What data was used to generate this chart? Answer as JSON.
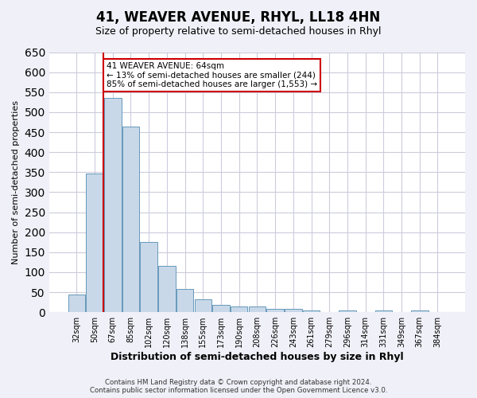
{
  "title": "41, WEAVER AVENUE, RHYL, LL18 4HN",
  "subtitle": "Size of property relative to semi-detached houses in Rhyl",
  "xlabel": "Distribution of semi-detached houses by size in Rhyl",
  "ylabel": "Number of semi-detached properties",
  "bin_labels": [
    "32sqm",
    "50sqm",
    "67sqm",
    "85sqm",
    "102sqm",
    "120sqm",
    "138sqm",
    "155sqm",
    "173sqm",
    "190sqm",
    "208sqm",
    "226sqm",
    "243sqm",
    "261sqm",
    "279sqm",
    "296sqm",
    "314sqm",
    "331sqm",
    "349sqm",
    "367sqm",
    "384sqm"
  ],
  "bar_heights": [
    45,
    347,
    535,
    463,
    175,
    115,
    58,
    33,
    18,
    14,
    15,
    8,
    9,
    5,
    0,
    5,
    0,
    5,
    0,
    5,
    0
  ],
  "bar_color": "#c8d8e8",
  "bar_edge_color": "#6699bb",
  "grid_color": "#ccccdd",
  "property_label": "41 WEAVER AVENUE: 64sqm",
  "smaller_pct": "13%",
  "smaller_count": 244,
  "larger_pct": "85%",
  "larger_count": 1553,
  "annotation_box_color": "#ffffff",
  "annotation_box_edge": "#cc0000",
  "vline_color": "#cc0000",
  "vline_x": 1.5,
  "ylim": [
    0,
    650
  ],
  "footer_line1": "Contains HM Land Registry data © Crown copyright and database right 2024.",
  "footer_line2": "Contains public sector information licensed under the Open Government Licence v3.0.",
  "background_color": "#f0f0f8",
  "plot_bg_color": "#ffffff"
}
